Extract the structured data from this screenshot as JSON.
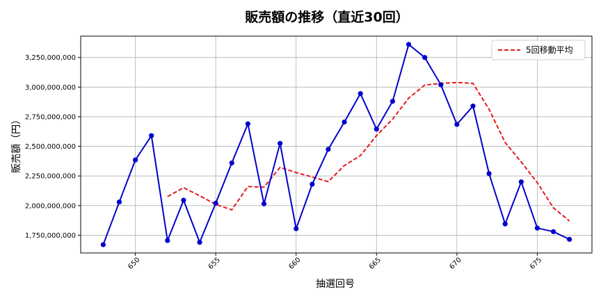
{
  "chart_data": {
    "type": "line",
    "title": "販売額の推移（直近30回）",
    "xlabel": "抽選回号",
    "ylabel": "販売額（円）",
    "xlim": [
      646.6,
      678.4
    ],
    "ylim": [
      1600000000,
      3430000000
    ],
    "grid": true,
    "legend_position": "top-right",
    "x_ticks": [
      650,
      655,
      660,
      665,
      670,
      675
    ],
    "y_ticks": [
      1750000000,
      2000000000,
      2250000000,
      2500000000,
      2750000000,
      3000000000,
      3250000000
    ],
    "x_tick_labels": [
      "650",
      "655",
      "660",
      "665",
      "670",
      "675"
    ],
    "y_tick_labels": [
      "1,750,000,000",
      "2,000,000,000",
      "2,250,000,000",
      "2,500,000,000",
      "2,750,000,000",
      "3,000,000,000",
      "3,250,000,000"
    ],
    "x": [
      648,
      649,
      650,
      651,
      652,
      653,
      654,
      655,
      656,
      657,
      658,
      659,
      660,
      661,
      662,
      663,
      664,
      665,
      666,
      667,
      668,
      669,
      670,
      671,
      672,
      673,
      674,
      675,
      676,
      677
    ],
    "series": [
      {
        "name": "",
        "color": "#0000cc",
        "style": "solid-markers",
        "values": [
          1670000000,
          2030000000,
          2385000000,
          2590000000,
          1705000000,
          2045000000,
          1690000000,
          2020000000,
          2360000000,
          2690000000,
          2015000000,
          2525000000,
          1805000000,
          2180000000,
          2475000000,
          2705000000,
          2945000000,
          2645000000,
          2880000000,
          3360000000,
          3250000000,
          3020000000,
          2685000000,
          2840000000,
          2270000000,
          1845000000,
          2200000000,
          1810000000,
          1780000000,
          1715000000
        ]
      },
      {
        "name": "5回移動平均",
        "color": "#e31a1c",
        "style": "dashed",
        "values": [
          null,
          null,
          null,
          null,
          2076000000,
          2151000000,
          2083000000,
          2010000000,
          1964000000,
          2161000000,
          2155000000,
          2322000000,
          2279000000,
          2241000000,
          2202000000,
          2338000000,
          2422000000,
          2590000000,
          2730000000,
          2907000000,
          3017000000,
          3031000000,
          3039000000,
          3031000000,
          2813000000,
          2532000000,
          2368000000,
          2193000000,
          1981000000,
          1870000000
        ]
      }
    ]
  }
}
